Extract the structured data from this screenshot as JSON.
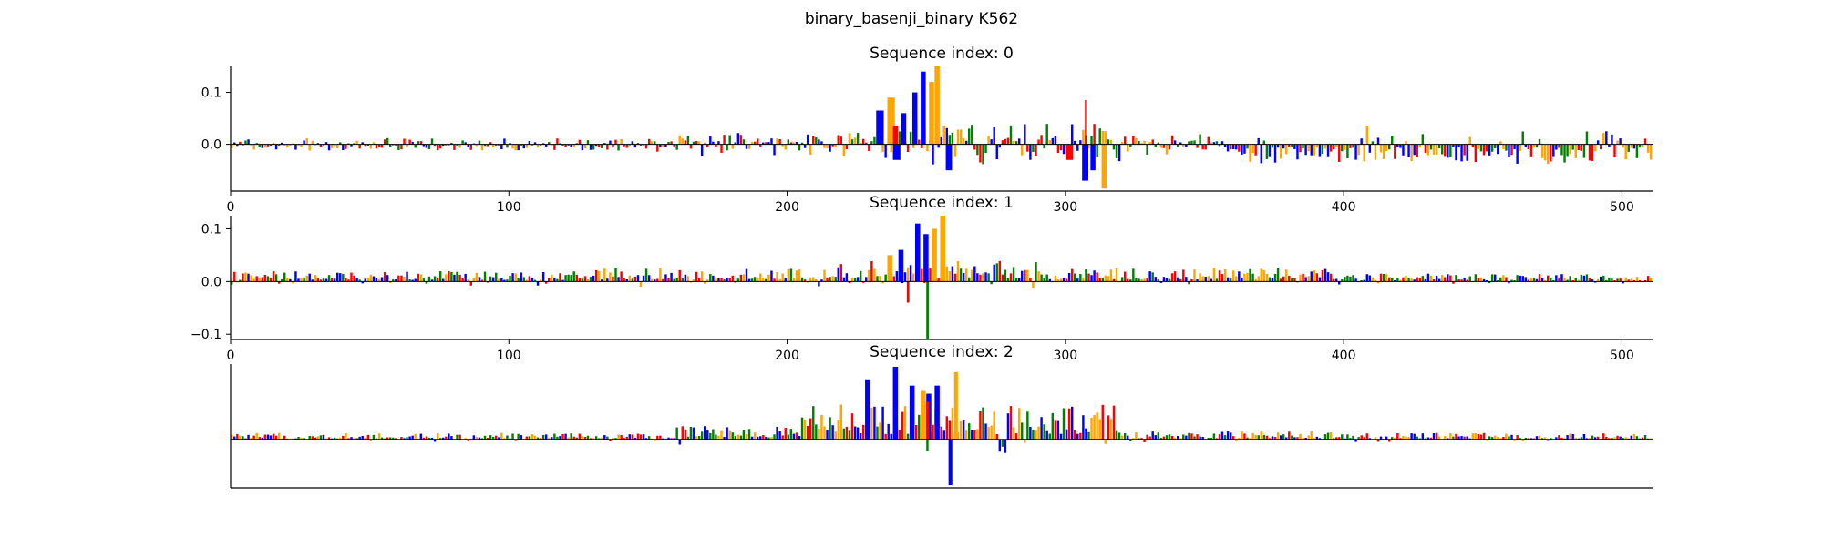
{
  "figure": {
    "suptitle": "binary_basenji_binary K562"
  },
  "colors": {
    "A": "#008000",
    "C": "#0000ff",
    "G": "#ffa500",
    "T": "#ff0000"
  },
  "chart_data": [
    {
      "type": "sequence-logo",
      "title": "Sequence index: 0",
      "xlim": [
        0,
        511
      ],
      "ylim": [
        -0.09,
        0.15
      ],
      "x_ticks": [
        0,
        100,
        200,
        300,
        400,
        500
      ],
      "y_ticks": [
        0.1,
        0.0
      ],
      "y_tick_labels": [
        "0.1",
        "0.0"
      ],
      "show_x_tick_labels": true,
      "peaks": [
        {
          "x": 232,
          "width": 6,
          "value": 0.065,
          "base": "C"
        },
        {
          "x": 236,
          "width": 6,
          "value": 0.09,
          "base": "G"
        },
        {
          "x": 238,
          "width": 4,
          "value": 0.035,
          "base": "T"
        },
        {
          "x": 241,
          "width": 4,
          "value": 0.06,
          "base": "C"
        },
        {
          "x": 245,
          "width": 4,
          "value": 0.1,
          "base": "C"
        },
        {
          "x": 248,
          "width": 4,
          "value": 0.14,
          "base": "C"
        },
        {
          "x": 251,
          "width": 4,
          "value": 0.12,
          "base": "G"
        },
        {
          "x": 253,
          "width": 4,
          "value": 0.15,
          "base": "G"
        },
        {
          "x": 257,
          "width": 5,
          "value": -0.05,
          "base": "C"
        },
        {
          "x": 300,
          "width": 6,
          "value": -0.03,
          "base": "T"
        },
        {
          "x": 306,
          "width": 5,
          "value": -0.07,
          "base": "C"
        },
        {
          "x": 309,
          "width": 4,
          "value": -0.05,
          "base": "C"
        },
        {
          "x": 313,
          "width": 4,
          "value": -0.085,
          "base": "G"
        },
        {
          "x": 307,
          "width": 1,
          "value": 0.085,
          "base": "T"
        },
        {
          "x": 238,
          "width": 6,
          "value": -0.03,
          "base": "C"
        }
      ],
      "regions": [
        {
          "from": 0,
          "to": 150,
          "amp": 0.012,
          "mode": "mixed-neg"
        },
        {
          "from": 150,
          "to": 230,
          "amp": 0.022,
          "mode": "mixed"
        },
        {
          "from": 230,
          "to": 320,
          "amp": 0.04,
          "mode": "mixed"
        },
        {
          "from": 320,
          "to": 360,
          "amp": 0.02,
          "mode": "mixed"
        },
        {
          "from": 360,
          "to": 511,
          "amp": 0.038,
          "mode": "neg"
        }
      ]
    },
    {
      "type": "sequence-logo",
      "title": "Sequence index: 1",
      "xlim": [
        0,
        511
      ],
      "ylim": [
        -0.11,
        0.125
      ],
      "x_ticks": [
        0,
        100,
        200,
        300,
        400,
        500
      ],
      "y_ticks": [
        0.1,
        0.0,
        -0.1
      ],
      "y_tick_labels": [
        "0.1",
        "0.0",
        "−0.1"
      ],
      "show_x_tick_labels": true,
      "peaks": [
        {
          "x": 246,
          "width": 4,
          "value": 0.11,
          "base": "C"
        },
        {
          "x": 249,
          "width": 4,
          "value": 0.09,
          "base": "C"
        },
        {
          "x": 252,
          "width": 4,
          "value": 0.1,
          "base": "G"
        },
        {
          "x": 255,
          "width": 4,
          "value": 0.125,
          "base": "G"
        },
        {
          "x": 243,
          "width": 2,
          "value": -0.04,
          "base": "T"
        },
        {
          "x": 250,
          "width": 2,
          "value": -0.11,
          "base": "A"
        },
        {
          "x": 240,
          "width": 4,
          "value": 0.06,
          "base": "C"
        },
        {
          "x": 236,
          "width": 4,
          "value": 0.05,
          "base": "G"
        }
      ],
      "regions": [
        {
          "from": 0,
          "to": 130,
          "amp": 0.02,
          "mode": "pos"
        },
        {
          "from": 130,
          "to": 215,
          "amp": 0.025,
          "mode": "pos"
        },
        {
          "from": 215,
          "to": 290,
          "amp": 0.04,
          "mode": "pos"
        },
        {
          "from": 290,
          "to": 400,
          "amp": 0.025,
          "mode": "pos"
        },
        {
          "from": 400,
          "to": 511,
          "amp": 0.015,
          "mode": "pos"
        }
      ]
    },
    {
      "type": "sequence-logo",
      "title": "Sequence index: 2",
      "xlim": [
        0,
        511
      ],
      "ylim": [
        -0.09,
        0.14
      ],
      "x_ticks": [],
      "y_ticks": [],
      "y_tick_labels": [],
      "show_x_tick_labels": false,
      "peaks": [
        {
          "x": 228,
          "width": 4,
          "value": 0.11,
          "base": "C"
        },
        {
          "x": 238,
          "width": 4,
          "value": 0.135,
          "base": "C"
        },
        {
          "x": 244,
          "width": 4,
          "value": 0.1,
          "base": "C"
        },
        {
          "x": 248,
          "width": 4,
          "value": 0.09,
          "base": "G"
        },
        {
          "x": 250,
          "width": 4,
          "value": 0.085,
          "base": "C"
        },
        {
          "x": 253,
          "width": 4,
          "value": 0.1,
          "base": "C"
        },
        {
          "x": 260,
          "width": 3,
          "value": 0.125,
          "base": "G"
        },
        {
          "x": 258,
          "width": 3,
          "value": -0.085,
          "base": "C"
        },
        {
          "x": 250,
          "width": 2,
          "value": 0.07,
          "base": "T"
        }
      ],
      "regions": [
        {
          "from": 0,
          "to": 160,
          "amp": 0.012,
          "mode": "pos"
        },
        {
          "from": 160,
          "to": 205,
          "amp": 0.025,
          "mode": "pos"
        },
        {
          "from": 205,
          "to": 320,
          "amp": 0.065,
          "mode": "pos"
        },
        {
          "from": 320,
          "to": 400,
          "amp": 0.015,
          "mode": "pos"
        },
        {
          "from": 400,
          "to": 511,
          "amp": 0.012,
          "mode": "pos"
        }
      ]
    }
  ]
}
